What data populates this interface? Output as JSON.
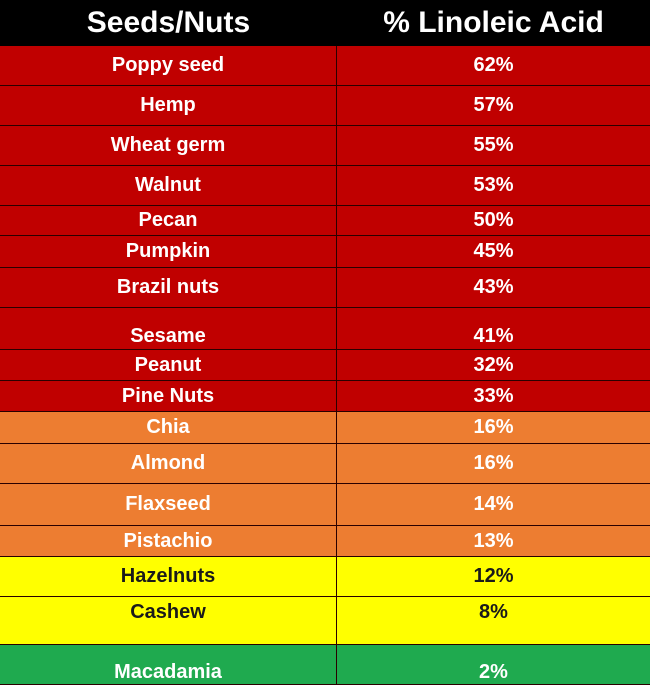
{
  "chart_data": {
    "type": "table",
    "columns": [
      "Seeds/Nuts",
      "% Linoleic Acid"
    ],
    "rows": [
      {
        "name": "Poppy seed",
        "value": "62%",
        "tier": "red"
      },
      {
        "name": "Hemp",
        "value": "57%",
        "tier": "red"
      },
      {
        "name": "Wheat germ",
        "value": "55%",
        "tier": "red"
      },
      {
        "name": "Walnut",
        "value": "53%",
        "tier": "red"
      },
      {
        "name": "Pecan",
        "value": "50%",
        "tier": "red"
      },
      {
        "name": "Pumpkin",
        "value": "45%",
        "tier": "red"
      },
      {
        "name": "Brazil nuts",
        "value": "43%",
        "tier": "red"
      },
      {
        "name": "Sesame",
        "value": "41%",
        "tier": "red"
      },
      {
        "name": "Peanut",
        "value": "32%",
        "tier": "red"
      },
      {
        "name": "Pine Nuts",
        "value": "33%",
        "tier": "red"
      },
      {
        "name": "Chia",
        "value": "16%",
        "tier": "orange"
      },
      {
        "name": "Almond",
        "value": "16%",
        "tier": "orange"
      },
      {
        "name": "Flaxseed",
        "value": "14%",
        "tier": "orange"
      },
      {
        "name": "Pistachio",
        "value": "13%",
        "tier": "orange"
      },
      {
        "name": "Hazelnuts",
        "value": "12%",
        "tier": "yellow"
      },
      {
        "name": "Cashew",
        "value": "8%",
        "tier": "yellow"
      },
      {
        "name": "Macadamia",
        "value": "2%",
        "tier": "green"
      }
    ]
  },
  "colors": {
    "header_bg": "#000000",
    "header_text": "#ffffff",
    "red": "#c00000",
    "orange": "#ed7d31",
    "yellow": "#ffff00",
    "green": "#1faa4f",
    "light_text": "#ffffff",
    "dark_text": "#1a1a1a"
  }
}
